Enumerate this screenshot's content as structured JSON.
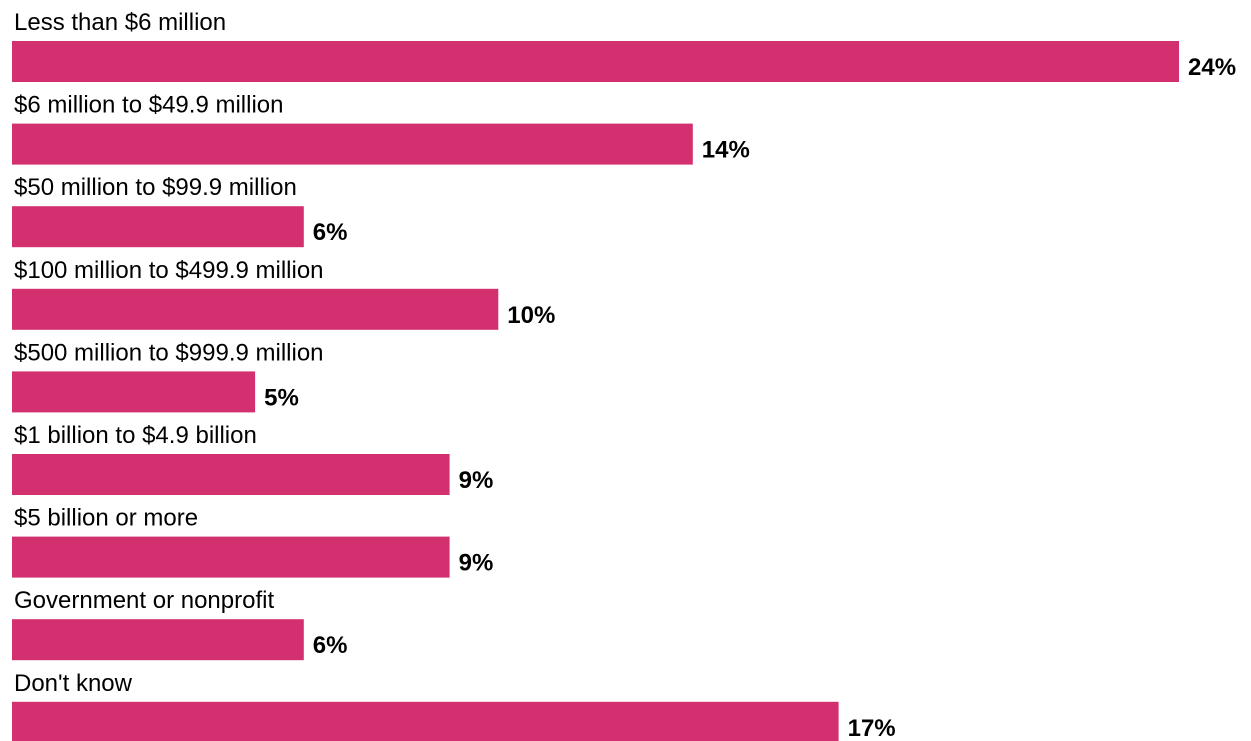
{
  "chart_data": {
    "type": "bar",
    "orientation": "horizontal",
    "categories": [
      "Less than $6 million",
      "$6 million to $49.9 million",
      "$50 million to $99.9 million",
      "$100 million to $499.9 million",
      "$500 million to $999.9 million",
      "$1 billion to $4.9 billion",
      "$5 billion or more",
      "Government or nonprofit",
      "Don't know"
    ],
    "values": [
      24,
      14,
      6,
      10,
      5,
      9,
      9,
      6,
      17
    ],
    "value_labels": [
      "24%",
      "14%",
      "6%",
      "10%",
      "5%",
      "9%",
      "9%",
      "6%",
      "17%"
    ],
    "title": "",
    "xlabel": "",
    "ylabel": "",
    "xlim": [
      0,
      24
    ],
    "grid": false,
    "legend": "none",
    "colors": {
      "bar": "#d3306f",
      "text": "#000000"
    }
  }
}
